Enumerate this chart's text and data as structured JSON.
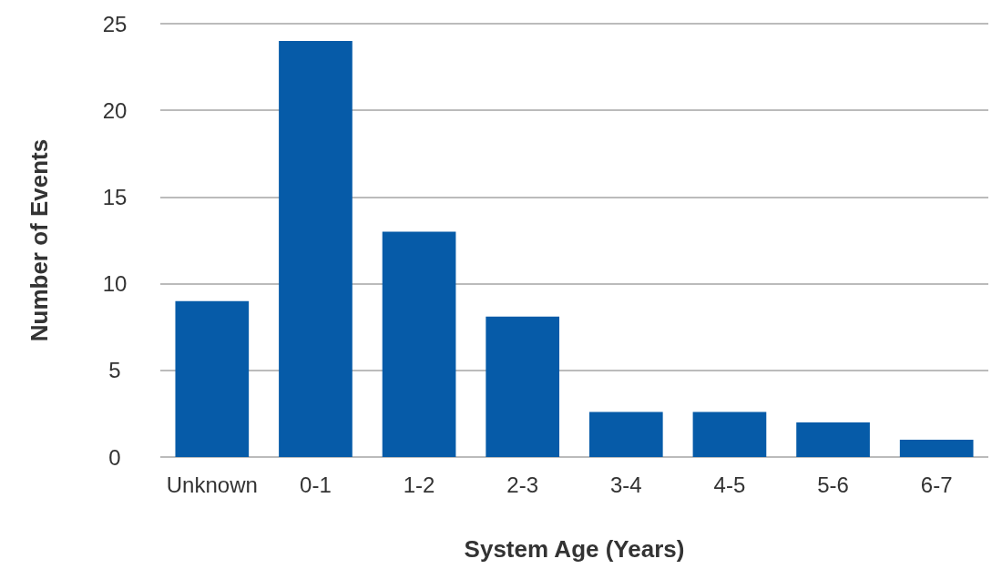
{
  "chart_data": {
    "type": "bar",
    "xlabel": "System Age (Years)",
    "ylabel": "Number of Events",
    "categories": [
      "Unknown",
      "0-1",
      "1-2",
      "2-3",
      "3-4",
      "4-5",
      "5-6",
      "6-7"
    ],
    "values": [
      9,
      24,
      13,
      8.1,
      2.6,
      2.6,
      2,
      1
    ],
    "color": "#065ba8",
    "ylim": [
      0,
      25
    ],
    "yticks": [
      0,
      5,
      10,
      15,
      20,
      25
    ],
    "grid": "y"
  }
}
